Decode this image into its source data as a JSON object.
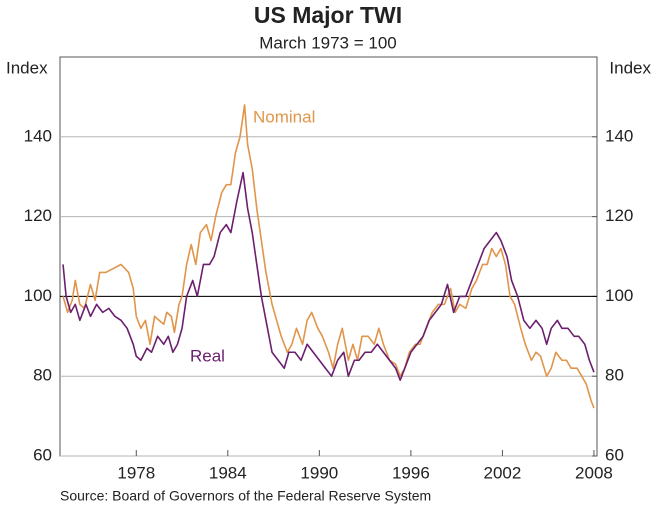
{
  "chart_data": {
    "type": "line",
    "title": "US Major TWI",
    "subtitle": "March 1973 = 100",
    "y_label": "Index",
    "y2_label": "Index",
    "source": "Source: Board of Governors of the Federal Reserve System",
    "xlim": [
      1973,
      2008.2
    ],
    "xticks": [
      1978,
      1984,
      1990,
      1996,
      2002,
      2008
    ],
    "ylim": [
      60,
      160
    ],
    "yticks": [
      60,
      80,
      100,
      120,
      140
    ],
    "y2lim": [
      60,
      160
    ],
    "y2ticks": [
      60,
      80,
      100,
      120,
      140
    ],
    "baseline": 100,
    "grid": true,
    "series": [
      {
        "name": "Nominal",
        "color": "#e0954a",
        "x": [
          1973.2,
          1973.5,
          1973.8,
          1974.0,
          1974.3,
          1974.6,
          1975.0,
          1975.3,
          1975.6,
          1976.0,
          1976.5,
          1977.0,
          1977.5,
          1977.8,
          1978.0,
          1978.3,
          1978.6,
          1978.9,
          1979.2,
          1979.5,
          1979.8,
          1980.0,
          1980.3,
          1980.5,
          1980.8,
          1981.0,
          1981.3,
          1981.6,
          1981.9,
          1982.2,
          1982.6,
          1982.9,
          1983.2,
          1983.6,
          1983.9,
          1984.2,
          1984.5,
          1984.8,
          1985.1,
          1985.3,
          1985.6,
          1985.9,
          1986.2,
          1986.5,
          1986.9,
          1987.2,
          1987.5,
          1987.9,
          1988.2,
          1988.5,
          1988.9,
          1989.2,
          1989.5,
          1989.9,
          1990.2,
          1990.6,
          1990.9,
          1991.2,
          1991.5,
          1991.9,
          1992.2,
          1992.5,
          1992.8,
          1993.2,
          1993.6,
          1993.9,
          1994.2,
          1994.6,
          1995.0,
          1995.3,
          1995.6,
          1995.9,
          1996.3,
          1996.6,
          1997.0,
          1997.4,
          1997.8,
          1998.2,
          1998.6,
          1998.9,
          1999.2,
          1999.6,
          2000.0,
          2000.3,
          2000.7,
          2001.0,
          2001.3,
          2001.6,
          2001.9,
          2002.2,
          2002.5,
          2002.8,
          2003.2,
          2003.5,
          2003.9,
          2004.2,
          2004.5,
          2004.9,
          2005.2,
          2005.5,
          2005.9,
          2006.2,
          2006.5,
          2006.9,
          2007.2,
          2007.5,
          2007.8,
          2008.0
        ],
        "values": [
          100,
          96,
          99,
          104,
          98,
          97,
          103,
          99,
          106,
          106,
          107,
          108,
          106,
          102,
          95,
          92,
          94,
          88,
          95,
          94,
          93,
          96,
          95,
          91,
          98,
          100,
          108,
          113,
          108,
          116,
          118,
          114,
          120,
          126,
          128,
          128,
          136,
          140,
          148,
          138,
          132,
          122,
          114,
          106,
          98,
          94,
          90,
          86,
          88,
          92,
          88,
          94,
          96,
          92,
          90,
          86,
          82,
          88,
          92,
          84,
          88,
          84,
          90,
          90,
          88,
          92,
          88,
          84,
          83,
          80,
          82,
          86,
          88,
          88,
          92,
          96,
          98,
          98,
          102,
          96,
          98,
          97,
          102,
          104,
          108,
          108,
          112,
          110,
          112,
          108,
          100,
          98,
          92,
          88,
          84,
          86,
          85,
          80,
          82,
          86,
          84,
          84,
          82,
          82,
          80,
          78,
          74,
          72
        ]
      },
      {
        "name": "Real",
        "color": "#6b1f6e",
        "x": [
          1973.2,
          1973.4,
          1973.7,
          1974.0,
          1974.3,
          1974.7,
          1975.0,
          1975.4,
          1975.8,
          1976.2,
          1976.6,
          1977.0,
          1977.4,
          1977.8,
          1978.0,
          1978.3,
          1978.7,
          1979.0,
          1979.4,
          1979.8,
          1980.1,
          1980.4,
          1980.7,
          1981.0,
          1981.3,
          1981.7,
          1982.0,
          1982.4,
          1982.8,
          1983.1,
          1983.5,
          1983.9,
          1984.2,
          1984.6,
          1985.0,
          1985.3,
          1985.6,
          1985.9,
          1986.2,
          1986.6,
          1986.9,
          1987.3,
          1987.7,
          1988.0,
          1988.4,
          1988.8,
          1989.2,
          1989.6,
          1990.0,
          1990.4,
          1990.8,
          1991.2,
          1991.6,
          1991.9,
          1992.3,
          1992.6,
          1993.0,
          1993.4,
          1993.8,
          1994.2,
          1994.6,
          1995.0,
          1995.3,
          1995.6,
          1996.0,
          1996.4,
          1996.8,
          1997.2,
          1997.6,
          1998.0,
          1998.4,
          1998.8,
          1999.2,
          1999.6,
          2000.0,
          2000.4,
          2000.8,
          2001.2,
          2001.6,
          2001.9,
          2002.3,
          2002.6,
          2003.0,
          2003.4,
          2003.8,
          2004.2,
          2004.6,
          2004.9,
          2005.2,
          2005.6,
          2005.9,
          2006.3,
          2006.7,
          2007.0,
          2007.4,
          2007.7,
          2008.0
        ],
        "values": [
          108,
          100,
          96,
          98,
          94,
          98,
          95,
          98,
          96,
          97,
          95,
          94,
          92,
          88,
          85,
          84,
          87,
          86,
          90,
          88,
          90,
          86,
          88,
          92,
          100,
          104,
          100,
          108,
          108,
          110,
          116,
          118,
          116,
          124,
          131,
          122,
          116,
          108,
          100,
          92,
          86,
          84,
          82,
          86,
          86,
          84,
          88,
          86,
          84,
          82,
          80,
          84,
          86,
          80,
          84,
          84,
          86,
          86,
          88,
          86,
          84,
          82,
          79,
          82,
          86,
          88,
          90,
          94,
          96,
          98,
          103,
          96,
          100,
          100,
          104,
          108,
          112,
          114,
          116,
          114,
          110,
          104,
          100,
          94,
          92,
          94,
          92,
          88,
          92,
          94,
          92,
          92,
          90,
          90,
          88,
          84,
          81
        ]
      }
    ]
  }
}
